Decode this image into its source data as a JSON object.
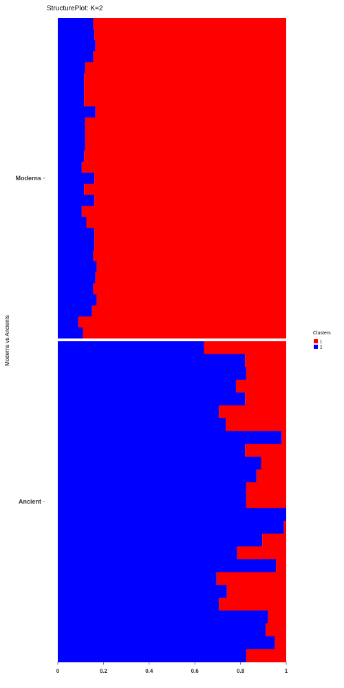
{
  "chart_data": {
    "type": "bar",
    "orientation": "horizontal-stacked",
    "title": "StructurePlot: K=2",
    "ylabel": "Moderns vs Ancients",
    "xlim": [
      0,
      1
    ],
    "x_ticks": [
      "0",
      "0.2",
      "0.4",
      "0.6",
      "0.8",
      "1"
    ],
    "legend": {
      "title": "Clusters",
      "placement": "right",
      "entries": [
        {
          "label": "1",
          "color": "#ff0000"
        },
        {
          "label": "2",
          "color": "#0000ff"
        }
      ]
    },
    "groups": [
      {
        "name": "Moderns",
        "cluster2": [
          0.155,
          0.16,
          0.165,
          0.155,
          0.12,
          0.115,
          0.115,
          0.115,
          0.165,
          0.12,
          0.12,
          0.12,
          0.115,
          0.105,
          0.16,
          0.115,
          0.16,
          0.105,
          0.125,
          0.16,
          0.16,
          0.155,
          0.17,
          0.165,
          0.155,
          0.17,
          0.15,
          0.09,
          0.11
        ]
      },
      {
        "name": "Ancient",
        "cluster2": [
          0.64,
          0.82,
          0.825,
          0.78,
          0.82,
          0.705,
          0.735,
          0.98,
          0.82,
          0.89,
          0.87,
          0.825,
          0.825,
          1.0,
          0.99,
          0.895,
          0.785,
          0.955,
          0.695,
          0.74,
          0.705,
          0.92,
          0.91,
          0.95,
          0.825
        ]
      }
    ],
    "colors": {
      "cluster1": "#ff0000",
      "cluster2": "#0000ff",
      "separator": "#ffffff"
    }
  }
}
